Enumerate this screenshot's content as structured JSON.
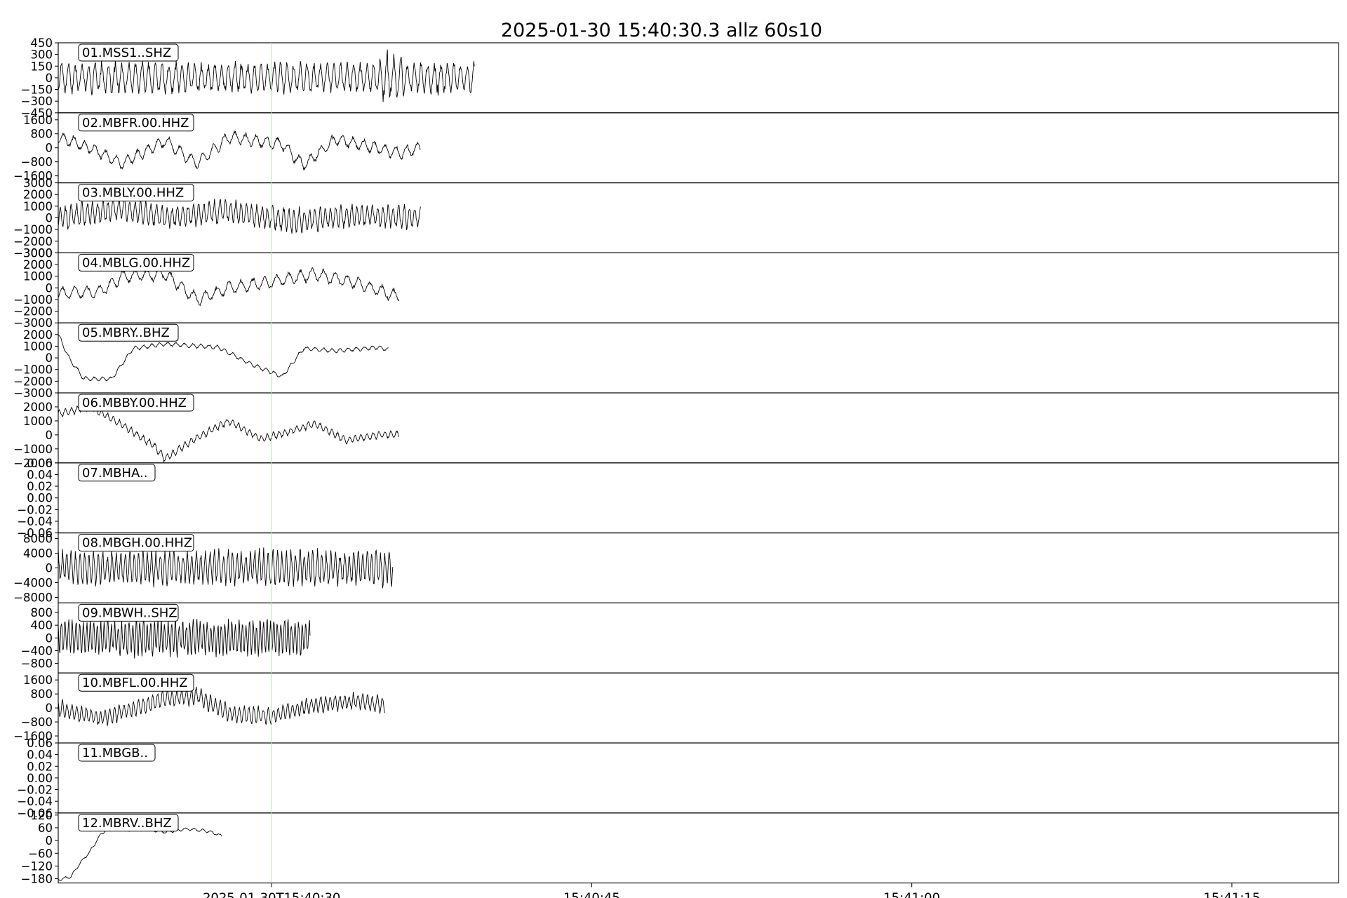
{
  "title": "2025-01-30 15:40:30.3         allz  60s10",
  "x_ticks": [
    "2025-01-30T15:40:30",
    "15:40:45",
    "15:41:00",
    "15:41:15"
  ],
  "colors": {
    "trace": "#000000",
    "marker": "#b8e6b8",
    "frame": "#000000",
    "background": "#ffffff"
  },
  "chart_data": {
    "type": "line",
    "title": "2025-01-30 15:40:30.3         allz  60s10",
    "x_axis": {
      "kind": "time",
      "range": [
        "2025-01-30T15:40:20.0",
        "2025-01-30T15:41:20.0"
      ],
      "ticks": [
        "2025-01-30T15:40:30",
        "15:40:45",
        "15:41:00",
        "15:41:15"
      ]
    },
    "marker_time": "2025-01-30T15:40:30.0",
    "grid": false,
    "legend": "none",
    "series": [
      {
        "name": "01.MSS1..SHZ",
        "data_end": "15:40:39.5",
        "ylim": [
          -450,
          450
        ],
        "yticks": [
          450,
          300,
          150,
          0,
          -150,
          -300,
          -450
        ],
        "amp": 190,
        "freq": 3.2,
        "trend": [
          [
            0,
            0
          ]
        ],
        "burst": [
          15.0,
          16.2,
          180
        ]
      },
      {
        "name": "02.MBFR.00.HHZ",
        "data_end": "15:40:37.0",
        "ylim": [
          -2000,
          2000
        ],
        "yticks": [
          1600,
          800,
          0,
          -800,
          -1600
        ],
        "amp": 350,
        "freq": 2.0,
        "trend": [
          [
            0,
            600
          ],
          [
            1.5,
            0
          ],
          [
            3,
            -900
          ],
          [
            5,
            400
          ],
          [
            6.5,
            -900
          ],
          [
            8,
            600
          ],
          [
            10.5,
            200
          ],
          [
            11.5,
            -1000
          ],
          [
            13,
            500
          ],
          [
            16,
            -300
          ],
          [
            18,
            300
          ],
          [
            20,
            -600
          ],
          [
            22,
            700
          ],
          [
            24.5,
            -300
          ],
          [
            27,
            100
          ],
          [
            29,
            700
          ],
          [
            30,
            1200
          ]
        ]
      },
      {
        "name": "03.MBLY.00.HHZ",
        "data_end": "15:40:37.0",
        "ylim": [
          -3000,
          3000
        ],
        "yticks": [
          3000,
          2000,
          1000,
          0,
          -1000,
          -2000,
          -3000
        ],
        "amp": 1000,
        "freq": 4.0,
        "trend": [
          [
            0,
            0
          ],
          [
            3,
            800
          ],
          [
            5,
            0
          ],
          [
            8,
            600
          ],
          [
            11,
            -300
          ],
          [
            14,
            200
          ],
          [
            17,
            0
          ],
          [
            20,
            -400
          ],
          [
            23,
            500
          ],
          [
            26,
            300
          ],
          [
            28,
            -400
          ],
          [
            30,
            400
          ]
        ]
      },
      {
        "name": "04.MBLG.00.HHZ",
        "data_end": "15:40:36.0",
        "ylim": [
          -3000,
          3000
        ],
        "yticks": [
          3000,
          2000,
          1000,
          0,
          -1000,
          -2000,
          -3000
        ],
        "amp": 550,
        "freq": 1.8,
        "trend": [
          [
            0,
            -500
          ],
          [
            2,
            -300
          ],
          [
            3,
            1000
          ],
          [
            5,
            1200
          ],
          [
            6.5,
            -1000
          ],
          [
            8,
            0
          ],
          [
            10,
            500
          ],
          [
            12,
            1200
          ],
          [
            14,
            400
          ],
          [
            16,
            -800
          ],
          [
            18,
            0
          ],
          [
            19.5,
            1100
          ],
          [
            21,
            200
          ],
          [
            22.5,
            -500
          ],
          [
            24,
            300
          ],
          [
            25.5,
            -600
          ],
          [
            26.5,
            700
          ]
        ]
      },
      {
        "name": "05.MBRY..BHZ",
        "data_end": "15:40:35.5",
        "ylim": [
          -3000,
          3000
        ],
        "yticks": [
          2000,
          1000,
          0,
          -1000,
          -2000,
          -3000
        ],
        "amp": 180,
        "freq": 2.6,
        "trend": [
          [
            0,
            2000
          ],
          [
            0.5,
            0
          ],
          [
            1.2,
            -1800
          ],
          [
            2.5,
            -1800
          ],
          [
            3.5,
            800
          ],
          [
            5,
            1200
          ],
          [
            7.5,
            900
          ],
          [
            9,
            -500
          ],
          [
            10.5,
            -1600
          ],
          [
            11.5,
            800
          ],
          [
            13,
            600
          ],
          [
            15,
            900
          ],
          [
            17,
            200
          ],
          [
            18.5,
            -800
          ],
          [
            20,
            400
          ],
          [
            21,
            -400
          ],
          [
            23,
            0
          ],
          [
            25,
            2000
          ],
          [
            26.5,
            300
          ],
          [
            27.5,
            -1000
          ],
          [
            29,
            -500
          ],
          [
            31,
            -200
          ]
        ]
      },
      {
        "name": "06.MBBY.00.HHZ",
        "data_end": "15:40:36.0",
        "ylim": [
          -2000,
          3000
        ],
        "yticks": [
          2000,
          1000,
          0,
          -1000,
          -2000
        ],
        "amp": 260,
        "freq": 3.6,
        "trend": [
          [
            0,
            1500
          ],
          [
            1.5,
            2000
          ],
          [
            3,
            700
          ],
          [
            4.5,
            -800
          ],
          [
            5,
            -1700
          ],
          [
            6.5,
            -200
          ],
          [
            8,
            1000
          ],
          [
            9.5,
            -300
          ],
          [
            11,
            300
          ],
          [
            12,
            800
          ],
          [
            13.5,
            -400
          ],
          [
            15,
            0
          ],
          [
            17,
            100
          ],
          [
            19,
            -400
          ],
          [
            21,
            900
          ],
          [
            23,
            0
          ],
          [
            25,
            -500
          ],
          [
            27,
            100
          ],
          [
            29,
            -700
          ],
          [
            31,
            700
          ]
        ]
      },
      {
        "name": "07.MBHA..",
        "data_end": "",
        "ylim": [
          -0.06,
          0.06
        ],
        "yticks": [
          0.06,
          0.04,
          0.02,
          0.0,
          -0.02,
          -0.04,
          -0.06
        ],
        "amp": 0,
        "freq": 1,
        "trend": [
          [
            0,
            0
          ]
        ]
      },
      {
        "name": "08.MBGH.00.HHZ",
        "data_end": "15:40:35.7",
        "ylim": [
          -9500,
          9500
        ],
        "yticks": [
          8000,
          4000,
          0,
          -4000,
          -8000
        ],
        "amp": 4500,
        "freq": 4.8,
        "trend": [
          [
            0,
            0
          ]
        ]
      },
      {
        "name": "09.MBWH..SHZ",
        "data_end": "15:40:31.8",
        "ylim": [
          -1100,
          1100
        ],
        "yticks": [
          800,
          400,
          0,
          -400,
          -800
        ],
        "amp": 560,
        "freq": 6.0,
        "trend": [
          [
            0,
            0
          ]
        ]
      },
      {
        "name": "10.MBFL.00.HHZ",
        "data_end": "15:40:35.3",
        "ylim": [
          -2000,
          2000
        ],
        "yticks": [
          1600,
          800,
          0,
          -800,
          -1600
        ],
        "amp": 480,
        "freq": 4.5,
        "trend": [
          [
            0,
            0
          ],
          [
            0.5,
            -200
          ],
          [
            2,
            -600
          ],
          [
            5,
            500
          ],
          [
            6.5,
            700
          ],
          [
            8,
            -300
          ],
          [
            10,
            -500
          ],
          [
            12,
            200
          ],
          [
            14,
            400
          ],
          [
            16,
            0
          ],
          [
            18,
            -300
          ],
          [
            20,
            -500
          ],
          [
            22,
            200
          ],
          [
            25,
            300
          ],
          [
            28,
            300
          ],
          [
            30,
            100
          ]
        ]
      },
      {
        "name": "11.MBGB..",
        "data_end": "",
        "ylim": [
          -0.06,
          0.06
        ],
        "yticks": [
          0.06,
          0.04,
          0.02,
          0.0,
          -0.02,
          -0.04,
          -0.06
        ],
        "amp": 0,
        "freq": 1,
        "trend": [
          [
            0,
            0
          ]
        ]
      },
      {
        "name": "12.MBRV..BHZ",
        "data_end": "15:40:27.7",
        "ylim": [
          -200,
          130
        ],
        "yticks": [
          120,
          60,
          0,
          -60,
          -120,
          -180
        ],
        "amp": 7,
        "freq": 2.5,
        "trend": [
          [
            0,
            -185
          ],
          [
            0.6,
            -170
          ],
          [
            1,
            -110
          ],
          [
            1.5,
            -50
          ],
          [
            2,
            30
          ],
          [
            2.5,
            70
          ],
          [
            3.2,
            50
          ],
          [
            4,
            55
          ],
          [
            5,
            40
          ],
          [
            6,
            55
          ],
          [
            7,
            45
          ],
          [
            8,
            10
          ],
          [
            9,
            -40
          ],
          [
            10,
            -50
          ],
          [
            11,
            -55
          ],
          [
            12,
            50
          ],
          [
            12.8,
            75
          ],
          [
            13.3,
            60
          ],
          [
            14,
            0
          ],
          [
            14.6,
            -30
          ],
          [
            15.3,
            55
          ],
          [
            15.7,
            55
          ]
        ]
      }
    ]
  }
}
